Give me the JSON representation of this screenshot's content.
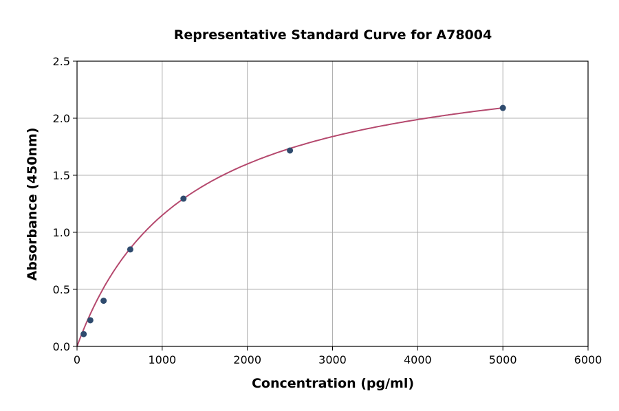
{
  "chart_data": {
    "type": "scatter",
    "title": "Representative Standard Curve for A78004",
    "xlabel": "Concentration (pg/ml)",
    "ylabel": "Absorbance (450nm)",
    "xlim": [
      0,
      6000
    ],
    "ylim": [
      0,
      2.5
    ],
    "xticks": [
      "0",
      "1000",
      "2000",
      "3000",
      "4000",
      "5000",
      "6000"
    ],
    "yticks": [
      "0.0",
      "0.5",
      "1.0",
      "1.5",
      "2.0",
      "2.5"
    ],
    "grid": true,
    "points": [
      {
        "x": 78,
        "y": 0.108
      },
      {
        "x": 156,
        "y": 0.229
      },
      {
        "x": 312,
        "y": 0.4
      },
      {
        "x": 625,
        "y": 0.85
      },
      {
        "x": 1250,
        "y": 1.295
      },
      {
        "x": 2500,
        "y": 1.717
      },
      {
        "x": 5000,
        "y": 2.09
      }
    ],
    "fit_curve": {
      "type": "fitted",
      "x_range": [
        0,
        5000
      ]
    },
    "colors": {
      "points": "#2f4b6e",
      "curve": "#b5496e",
      "grid": "#b0b0b0"
    }
  }
}
